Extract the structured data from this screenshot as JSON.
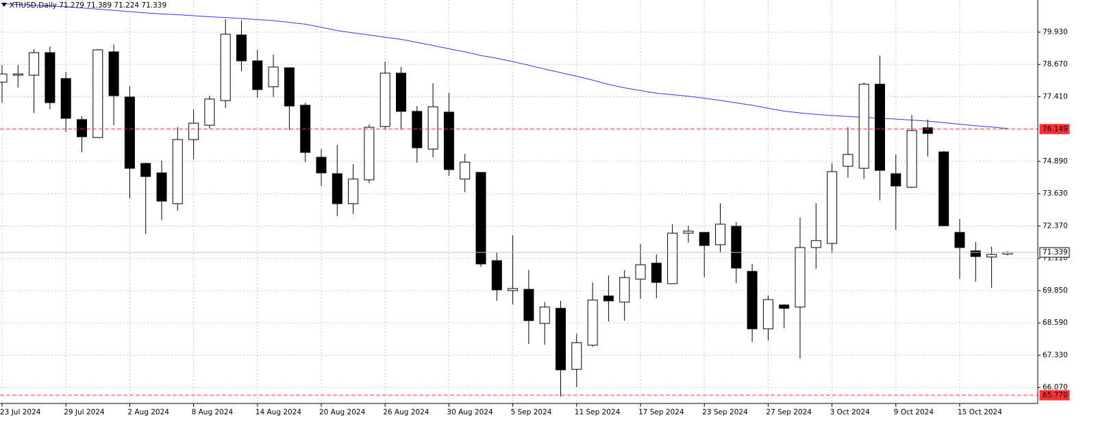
{
  "chart_data": {
    "type": "candlestick",
    "title": "XTIUSD,Daily  71.279 71.389 71.224 71.339",
    "categories": [
      "23 Jul 2024",
      null,
      null,
      null,
      "29 Jul 2024",
      null,
      null,
      null,
      "2 Aug 2024",
      null,
      null,
      null,
      "8 Aug 2024",
      null,
      null,
      null,
      "14 Aug 2024",
      null,
      null,
      null,
      "20 Aug 2024",
      null,
      null,
      null,
      "26 Aug 2024",
      null,
      null,
      null,
      "30 Aug 2024",
      null,
      null,
      null,
      "5 Sep 2024",
      null,
      null,
      null,
      "11 Sep 2024",
      null,
      null,
      null,
      "17 Sep 2024",
      null,
      null,
      null,
      "23 Sep 2024",
      null,
      null,
      null,
      "27 Sep 2024",
      null,
      null,
      null,
      "3 Oct 2024",
      null,
      null,
      null,
      "9 Oct 2024",
      null,
      null,
      null,
      "15 Oct 2024",
      null,
      null,
      null
    ],
    "open": [
      77.98,
      78.25,
      78.25,
      79.13,
      78.12,
      76.52,
      75.82,
      79.16,
      77.4,
      74.81,
      74.44,
      73.24,
      75.74,
      76.3,
      77.26,
      79.82,
      78.81,
      77.8,
      78.54,
      77.08,
      75.05,
      74.41,
      73.24,
      74.17,
      76.25,
      78.33,
      76.84,
      75.37,
      76.81,
      74.2,
      74.46,
      71.02,
      69.85,
      69.9,
      68.57,
      69.16,
      66.78,
      67.72,
      69.64,
      69.4,
      70.3,
      70.92,
      70.12,
      72.09,
      72.12,
      71.64,
      72.36,
      70.6,
      68.36,
      69.29,
      69.21,
      71.53,
      71.69,
      74.7,
      74.62,
      77.9,
      74.41,
      73.88,
      76.2,
      75.26,
      72.12,
      71.4,
      71.16,
      71.279
    ],
    "high": [
      78.65,
      78.65,
      79.26,
      79.37,
      78.38,
      76.65,
      79.26,
      79.45,
      77.82,
      74.84,
      74.92,
      76.22,
      76.92,
      77.45,
      80.44,
      80.38,
      79.24,
      79.05,
      78.54,
      77.18,
      75.37,
      75.53,
      74.78,
      76.33,
      78.78,
      78.57,
      77.05,
      77.93,
      77.56,
      75.18,
      74.46,
      71.34,
      72.01,
      70.65,
      69.4,
      69.45,
      68.17,
      70.17,
      70.44,
      70.65,
      71.66,
      71.26,
      72.44,
      72.38,
      72.12,
      73.26,
      72.52,
      70.89,
      69.66,
      69.32,
      72.7,
      73.26,
      74.81,
      76.22,
      77.96,
      79.02,
      75.16,
      76.7,
      76.52,
      75.29,
      72.65,
      71.74,
      71.56,
      71.389
    ],
    "low": [
      77.18,
      77.77,
      76.78,
      76.92,
      76.04,
      75.24,
      75.8,
      76.3,
      73.45,
      72.06,
      72.6,
      72.97,
      74.97,
      76.17,
      76.97,
      78.41,
      77.37,
      77.4,
      76.12,
      74.86,
      73.93,
      72.76,
      72.84,
      74.04,
      76.12,
      76.12,
      74.84,
      75.05,
      74.33,
      73.69,
      70.78,
      69.45,
      69.32,
      67.77,
      67.74,
      65.72,
      66.09,
      67.66,
      68.65,
      68.68,
      69.53,
      69.56,
      70.12,
      71.72,
      70.38,
      71.32,
      70.14,
      67.85,
      67.9,
      68.38,
      67.21,
      70.7,
      71.32,
      74.25,
      74.2,
      73.37,
      72.22,
      73.85,
      75.08,
      72.38,
      70.3,
      70.2,
      69.96,
      71.224
    ],
    "close": [
      78.3,
      78.3,
      79.13,
      77.18,
      76.57,
      75.85,
      79.24,
      77.45,
      74.62,
      74.3,
      73.34,
      75.74,
      76.38,
      77.32,
      79.85,
      78.81,
      77.69,
      78.57,
      77.05,
      75.24,
      74.44,
      73.24,
      74.2,
      76.22,
      78.33,
      76.84,
      75.42,
      77.02,
      74.57,
      74.86,
      70.89,
      69.88,
      69.93,
      68.68,
      69.21,
      66.76,
      67.82,
      69.48,
      69.45,
      70.36,
      70.86,
      70.17,
      72.09,
      72.17,
      71.61,
      72.44,
      70.73,
      68.36,
      69.5,
      69.16,
      71.53,
      71.8,
      74.49,
      75.16,
      77.9,
      74.54,
      73.93,
      76.09,
      75.98,
      72.38,
      71.53,
      71.18,
      71.26,
      71.339
    ],
    "up_color": "#ffffff",
    "down_color": "#000000",
    "overlay": {
      "color": "#3333ff",
      "values": [
        81.04,
        81.01,
        80.98,
        80.95,
        80.92,
        80.87,
        80.83,
        80.78,
        80.73,
        80.68,
        80.64,
        80.61,
        80.57,
        80.53,
        80.5,
        80.46,
        80.42,
        80.38,
        80.31,
        80.24,
        80.12,
        79.99,
        79.9,
        79.82,
        79.73,
        79.65,
        79.53,
        79.41,
        79.28,
        79.16,
        79.02,
        78.91,
        78.78,
        78.64,
        78.49,
        78.35,
        78.21,
        78.06,
        77.89,
        77.76,
        77.65,
        77.55,
        77.49,
        77.43,
        77.35,
        77.27,
        77.17,
        77.08,
        76.96,
        76.85,
        76.78,
        76.72,
        76.68,
        76.64,
        76.61,
        76.57,
        76.54,
        76.5,
        76.46,
        76.4,
        76.34,
        76.28,
        76.23,
        76.17
      ]
    },
    "hlines": [
      {
        "value": 76.149,
        "color": "#ff3333",
        "style": "dashed"
      },
      {
        "value": 71.339,
        "color": "#c0c0c0",
        "style": "solid"
      },
      {
        "value": 65.77,
        "label": "65.770",
        "color": "#ff3333",
        "style": "dashed"
      }
    ],
    "ylim": [
      65.45,
      81.183
    ],
    "yticks": [
      {
        "value": 79.93,
        "label": "79.930"
      },
      {
        "value": 78.67,
        "label": "78.670"
      },
      {
        "value": 77.41,
        "label": "77.410"
      },
      {
        "value": 74.89,
        "label": "74.890"
      },
      {
        "value": 73.63,
        "label": "73.630"
      },
      {
        "value": 72.37,
        "label": "72.370"
      },
      {
        "value": 71.11,
        "label": "71.110"
      },
      {
        "value": 69.85,
        "label": "69.850"
      },
      {
        "value": 68.59,
        "label": "68.590"
      },
      {
        "value": 67.33,
        "label": "67.330"
      },
      {
        "value": 66.07,
        "label": "66.070"
      }
    ],
    "grid": true
  }
}
